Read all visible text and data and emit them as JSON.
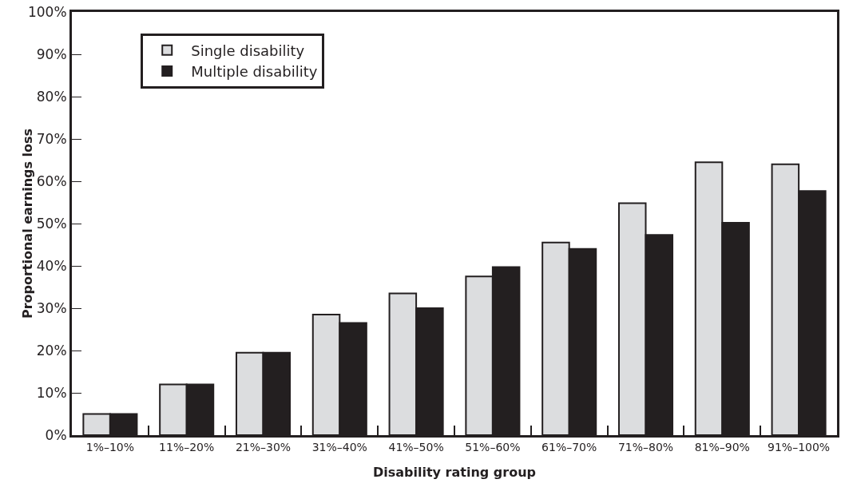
{
  "chart_data": {
    "type": "bar",
    "xlabel": "Disability rating group",
    "ylabel": "Proportional earnings loss",
    "categories": [
      "1%–10%",
      "11%–20%",
      "21%–30%",
      "31%–40%",
      "41%–50%",
      "51%–60%",
      "61%–70%",
      "71%–80%",
      "81%–90%",
      "91%–100%"
    ],
    "series": [
      {
        "name": "Single disability",
        "color": "#dcdddf",
        "values": [
          5,
          12,
          19.5,
          28.5,
          33.5,
          37.5,
          45.5,
          54.8,
          64.5,
          64
        ]
      },
      {
        "name": "Multiple disability",
        "color": "#231f20",
        "values": [
          5,
          12,
          19.5,
          26.5,
          30,
          39.7,
          44,
          47.3,
          50.2,
          57.7
        ]
      }
    ],
    "ylim": [
      0,
      100
    ],
    "yticks": [
      {
        "value": 0,
        "label": "0%"
      },
      {
        "value": 10,
        "label": "10%"
      },
      {
        "value": 20,
        "label": "20%"
      },
      {
        "value": 30,
        "label": "30%"
      },
      {
        "value": 40,
        "label": "40%"
      },
      {
        "value": 50,
        "label": "50%"
      },
      {
        "value": 60,
        "label": "60%"
      },
      {
        "value": 70,
        "label": "70%"
      },
      {
        "value": 80,
        "label": "80%"
      },
      {
        "value": 90,
        "label": "90%"
      },
      {
        "value": 100,
        "label": "100%"
      }
    ],
    "grid": false,
    "legend": "top left"
  }
}
